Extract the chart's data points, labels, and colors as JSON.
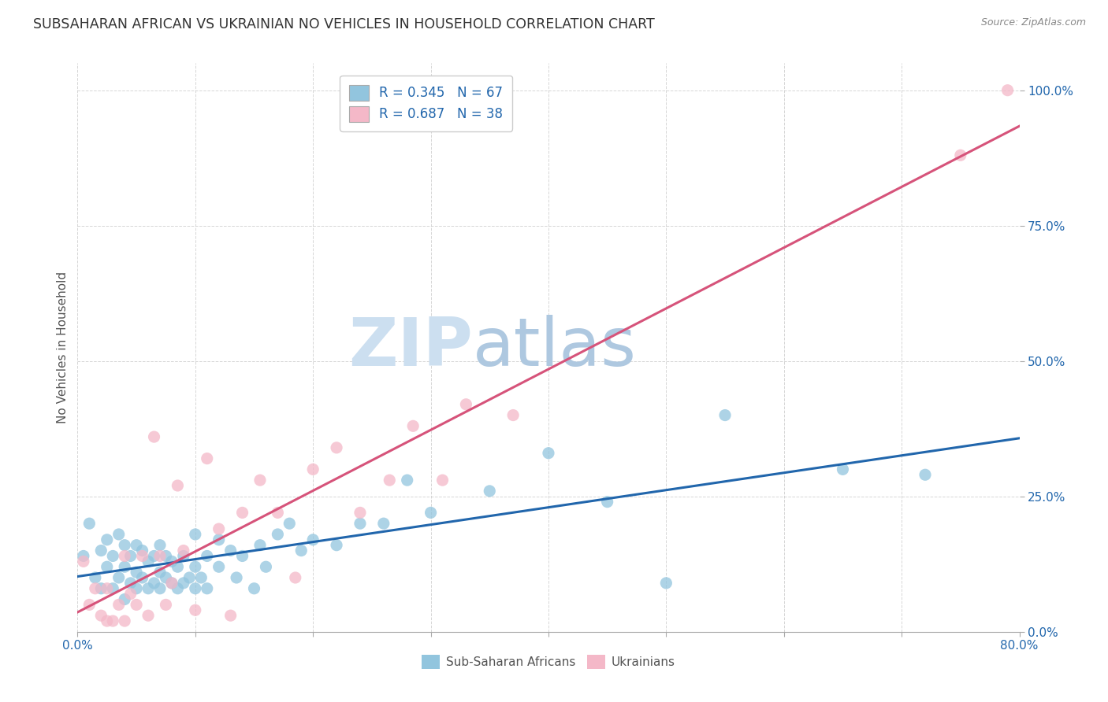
{
  "title": "SUBSAHARAN AFRICAN VS UKRAINIAN NO VEHICLES IN HOUSEHOLD CORRELATION CHART",
  "source": "Source: ZipAtlas.com",
  "ylabel": "No Vehicles in Household",
  "legend_label1": "Sub-Saharan Africans",
  "legend_label2": "Ukrainians",
  "blue_color": "#92c5de",
  "pink_color": "#f4b8c8",
  "blue_line_color": "#2166ac",
  "pink_line_color": "#d6537a",
  "blue_scatter_x": [
    0.005,
    0.01,
    0.015,
    0.02,
    0.02,
    0.025,
    0.025,
    0.03,
    0.03,
    0.035,
    0.035,
    0.04,
    0.04,
    0.04,
    0.045,
    0.045,
    0.05,
    0.05,
    0.05,
    0.055,
    0.055,
    0.06,
    0.06,
    0.065,
    0.065,
    0.07,
    0.07,
    0.07,
    0.075,
    0.075,
    0.08,
    0.08,
    0.085,
    0.085,
    0.09,
    0.09,
    0.095,
    0.1,
    0.1,
    0.1,
    0.105,
    0.11,
    0.11,
    0.12,
    0.12,
    0.13,
    0.135,
    0.14,
    0.15,
    0.155,
    0.16,
    0.17,
    0.18,
    0.19,
    0.2,
    0.22,
    0.24,
    0.26,
    0.28,
    0.3,
    0.35,
    0.4,
    0.45,
    0.5,
    0.55,
    0.65,
    0.72
  ],
  "blue_scatter_y": [
    0.14,
    0.2,
    0.1,
    0.15,
    0.08,
    0.12,
    0.17,
    0.08,
    0.14,
    0.1,
    0.18,
    0.06,
    0.12,
    0.16,
    0.09,
    0.14,
    0.08,
    0.11,
    0.16,
    0.1,
    0.15,
    0.08,
    0.13,
    0.09,
    0.14,
    0.08,
    0.11,
    0.16,
    0.1,
    0.14,
    0.09,
    0.13,
    0.08,
    0.12,
    0.09,
    0.14,
    0.1,
    0.08,
    0.12,
    0.18,
    0.1,
    0.08,
    0.14,
    0.12,
    0.17,
    0.15,
    0.1,
    0.14,
    0.08,
    0.16,
    0.12,
    0.18,
    0.2,
    0.15,
    0.17,
    0.16,
    0.2,
    0.2,
    0.28,
    0.22,
    0.26,
    0.33,
    0.24,
    0.09,
    0.4,
    0.3,
    0.29
  ],
  "pink_scatter_x": [
    0.005,
    0.01,
    0.015,
    0.02,
    0.025,
    0.025,
    0.03,
    0.035,
    0.04,
    0.04,
    0.045,
    0.05,
    0.055,
    0.06,
    0.065,
    0.07,
    0.075,
    0.08,
    0.085,
    0.09,
    0.1,
    0.11,
    0.12,
    0.13,
    0.14,
    0.155,
    0.17,
    0.185,
    0.2,
    0.22,
    0.24,
    0.265,
    0.285,
    0.31,
    0.33,
    0.37,
    0.75,
    0.79
  ],
  "pink_scatter_y": [
    0.13,
    0.05,
    0.08,
    0.03,
    0.02,
    0.08,
    0.02,
    0.05,
    0.02,
    0.14,
    0.07,
    0.05,
    0.14,
    0.03,
    0.36,
    0.14,
    0.05,
    0.09,
    0.27,
    0.15,
    0.04,
    0.32,
    0.19,
    0.03,
    0.22,
    0.28,
    0.22,
    0.1,
    0.3,
    0.34,
    0.22,
    0.28,
    0.38,
    0.28,
    0.42,
    0.4,
    0.88,
    1.0
  ],
  "xtick_positions": [
    0.0,
    0.1,
    0.2,
    0.3,
    0.4,
    0.5,
    0.6,
    0.7,
    0.8
  ],
  "ytick_positions": [
    0.0,
    0.25,
    0.5,
    0.75,
    1.0
  ],
  "xlim": [
    0.0,
    0.8
  ],
  "ylim": [
    0.0,
    1.05
  ],
  "watermark_zip_color": "#c8dff0",
  "watermark_atlas_color": "#a8c8e8"
}
